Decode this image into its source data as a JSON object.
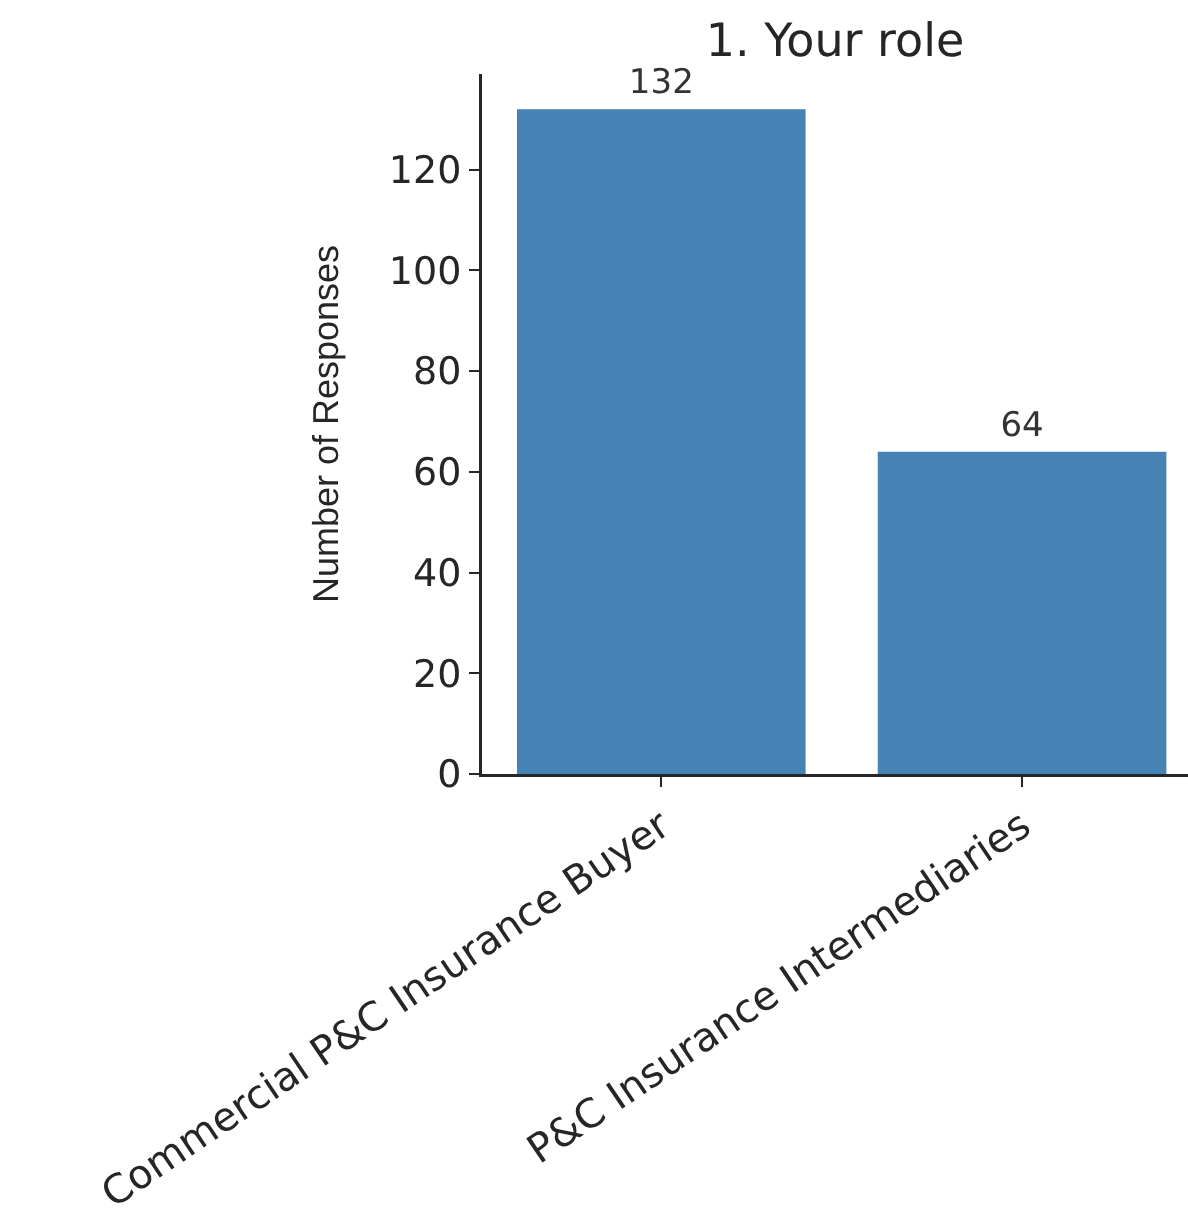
{
  "chart_data": {
    "type": "bar",
    "title": "1. Your role",
    "ylabel": "Number of Responses",
    "categories": [
      "Commercial P&C Insurance Buyer",
      "P&C Insurance Intermediaries"
    ],
    "values": [
      132,
      64
    ],
    "color": "#4682b4",
    "ylim": [
      0,
      139
    ],
    "yticks": [
      0,
      20,
      40,
      60,
      80,
      100,
      120
    ],
    "data_labels": true
  }
}
